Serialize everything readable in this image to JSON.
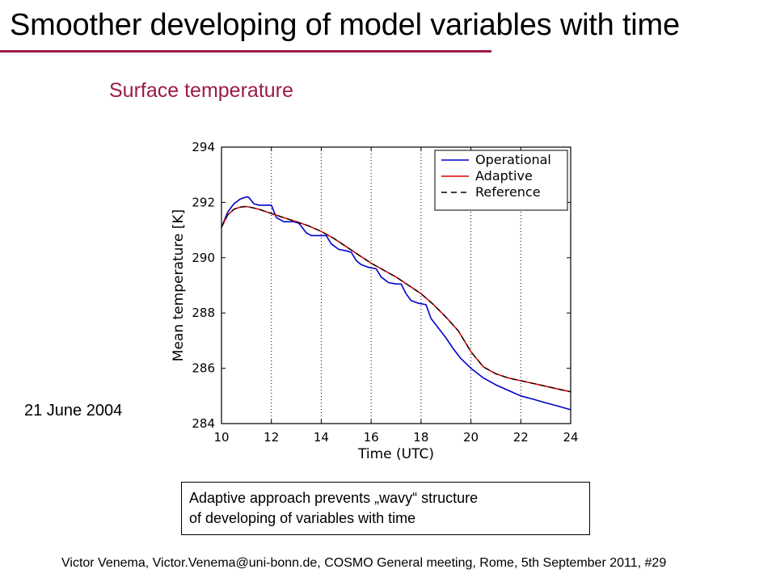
{
  "slide": {
    "title": "Smoother developing of model variables with time",
    "subtitle": "Surface temperature",
    "date": "21 June 2004",
    "note_line1": "Adaptive approach prevents „wavy“ structure",
    "note_line2": "of developing of variables with time",
    "footer": "Victor Venema, Victor.Venema@uni-bonn.de, COSMO General meeting, Rome, 5th September 2011, #29",
    "accent_color": "#9b1b45"
  },
  "chart_data": {
    "type": "line",
    "title": "",
    "xlabel": "Time (UTC)",
    "ylabel": "Mean temperature [K]",
    "xlim": [
      10,
      24
    ],
    "ylim": [
      284,
      294
    ],
    "xticks": [
      10,
      12,
      14,
      16,
      18,
      20,
      22,
      24
    ],
    "yticks": [
      284,
      286,
      288,
      290,
      292,
      294
    ],
    "grid": "dotted vertical lines at x ticks",
    "legend_position": "top-right",
    "series": [
      {
        "name": "Operational",
        "color": "#0000cc",
        "style": "solid",
        "x": [
          10.0,
          10.25,
          10.5,
          10.75,
          11.0,
          11.1,
          11.3,
          11.5,
          12.0,
          12.2,
          12.5,
          12.9,
          13.1,
          13.4,
          13.6,
          13.9,
          14.2,
          14.4,
          14.7,
          15.0,
          15.2,
          15.4,
          15.6,
          15.9,
          16.2,
          16.4,
          16.7,
          17.0,
          17.2,
          17.4,
          17.6,
          17.9,
          18.2,
          18.4,
          18.7,
          19.0,
          19.3,
          19.6,
          20.0,
          20.5,
          21.0,
          21.5,
          22.0,
          22.5,
          23.0,
          23.5,
          24.0
        ],
        "values": [
          291.1,
          291.65,
          291.95,
          292.12,
          292.2,
          292.18,
          291.95,
          291.9,
          291.9,
          291.45,
          291.3,
          291.3,
          291.25,
          290.9,
          290.8,
          290.8,
          290.8,
          290.5,
          290.3,
          290.25,
          290.2,
          289.9,
          289.75,
          289.65,
          289.6,
          289.3,
          289.1,
          289.05,
          289.05,
          288.7,
          288.45,
          288.35,
          288.3,
          287.8,
          287.45,
          287.1,
          286.7,
          286.35,
          286.0,
          285.65,
          285.4,
          285.2,
          285.0,
          284.88,
          284.75,
          284.63,
          284.5
        ]
      },
      {
        "name": "Adaptive",
        "color": "#dd0000",
        "style": "solid",
        "x": [
          10.0,
          10.25,
          10.5,
          10.75,
          11.0,
          11.2,
          11.5,
          12.0,
          12.5,
          13.0,
          13.5,
          14.0,
          14.5,
          15.0,
          15.5,
          16.0,
          16.5,
          17.0,
          17.5,
          18.0,
          18.5,
          19.0,
          19.5,
          20.0,
          20.5,
          21.0,
          21.5,
          22.0,
          22.5,
          23.0,
          23.5,
          24.0
        ],
        "values": [
          291.1,
          291.55,
          291.75,
          291.83,
          291.85,
          291.82,
          291.75,
          291.6,
          291.45,
          291.3,
          291.15,
          290.95,
          290.7,
          290.4,
          290.1,
          289.8,
          289.55,
          289.3,
          289.0,
          288.7,
          288.3,
          287.85,
          287.35,
          286.6,
          286.05,
          285.8,
          285.65,
          285.55,
          285.45,
          285.35,
          285.25,
          285.15
        ]
      },
      {
        "name": "Reference",
        "color": "#000000",
        "style": "dashed",
        "x": [
          10.0,
          10.25,
          10.5,
          10.75,
          11.0,
          11.2,
          11.5,
          12.0,
          12.5,
          13.0,
          13.5,
          14.0,
          14.5,
          15.0,
          15.5,
          16.0,
          16.5,
          17.0,
          17.5,
          18.0,
          18.5,
          19.0,
          19.5,
          20.0,
          20.5,
          21.0,
          21.5,
          22.0,
          22.5,
          23.0,
          23.5,
          24.0
        ],
        "values": [
          291.1,
          291.55,
          291.75,
          291.83,
          291.85,
          291.82,
          291.75,
          291.6,
          291.45,
          291.3,
          291.15,
          290.95,
          290.7,
          290.4,
          290.1,
          289.8,
          289.55,
          289.3,
          289.0,
          288.7,
          288.3,
          287.85,
          287.35,
          286.6,
          286.05,
          285.8,
          285.65,
          285.55,
          285.45,
          285.35,
          285.25,
          285.15
        ]
      }
    ]
  }
}
